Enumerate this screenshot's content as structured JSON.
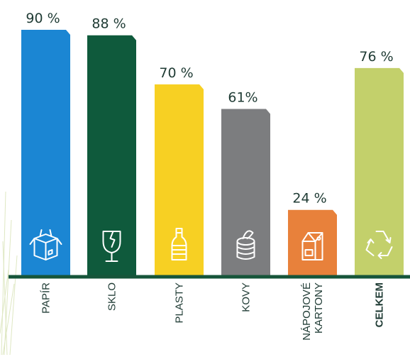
{
  "chart_data": {
    "type": "bar",
    "categories": [
      "PAPÍR",
      "SKLO",
      "PLASTY",
      "KOVY",
      "NÁPOJOVÉ KARTONY",
      "CELKEM"
    ],
    "category_lines": [
      [
        "PAPÍR"
      ],
      [
        "SKLO"
      ],
      [
        "PLASTY"
      ],
      [
        "KOVY"
      ],
      [
        "NÁPOJOVÉ",
        "KARTONY"
      ],
      [
        "CELKEM"
      ]
    ],
    "values": [
      90,
      88,
      70,
      61,
      24,
      76
    ],
    "value_labels": [
      "90 %",
      "88 %",
      "70 %",
      "61%",
      "24 %",
      "76 %"
    ],
    "colors": [
      "#1b86d3",
      "#0f5a3c",
      "#f7d023",
      "#7c7d7f",
      "#e8813b",
      "#c3d06b"
    ],
    "icons": [
      "box-icon",
      "broken-glass-icon",
      "bottle-icon",
      "can-icon",
      "milk-carton-icon",
      "recycle-icon"
    ],
    "ylim": [
      0,
      100
    ],
    "title": "",
    "xlabel": "",
    "ylabel": "",
    "grid": false,
    "legend": "none"
  }
}
